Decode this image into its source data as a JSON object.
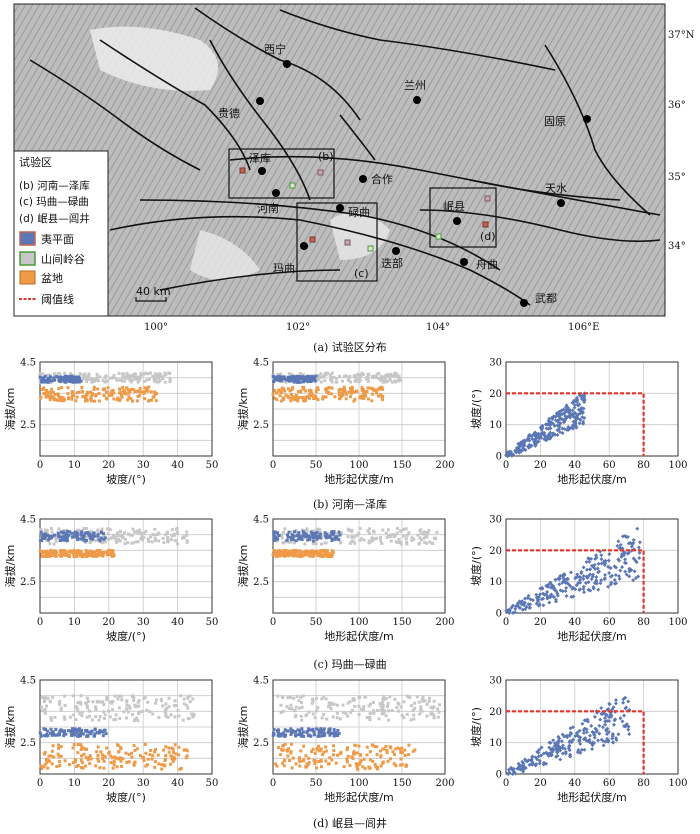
{
  "map": {
    "legend_title": "试验区",
    "legend_items": [
      "(b) 河南—泽库",
      "(c) 玛曲—碌曲",
      "(d) 岷县—闾井"
    ],
    "legend_symbols": [
      {
        "label": "夷平面",
        "color": "#5b77b5"
      },
      {
        "label": "山间岭谷",
        "color": "#c7c7c7"
      },
      {
        "label": "盆地",
        "color": "#ef9a47"
      },
      {
        "label": "阈值线",
        "color": "#e0352b"
      }
    ],
    "cities": [
      "西宁",
      "兰州",
      "贵德",
      "固原",
      "泽库",
      "合作",
      "河南",
      "碌曲",
      "岷县",
      "天水",
      "玛曲",
      "迭部",
      "舟曲",
      "武都"
    ],
    "box_labels": [
      "(b)",
      "(c)",
      "(d)"
    ],
    "lat_ticks": [
      "37°N",
      "36°",
      "35°",
      "34°"
    ],
    "lon_ticks": [
      "100°",
      "102°",
      "104°",
      "106°E"
    ],
    "scale_bar": "40 km",
    "caption": "(a) 试验区分布"
  },
  "row_captions": [
    "(b) 河南—泽库",
    "(c) 玛曲—碌曲",
    "(d) 岷县—闾井"
  ],
  "colors": {
    "planation": "#5b77b5",
    "valley": "#c7c7c7",
    "basin": "#ef9a47",
    "threshold": "#e0352b"
  },
  "chart_data": [
    {
      "id": "b1",
      "type": "scatter",
      "xlabel": "坡度/(°)",
      "ylabel": "海拔/km",
      "xlim": [
        0,
        50
      ],
      "ylim": [
        1.5,
        4.5
      ],
      "xticks": [
        "0",
        "10",
        "20",
        "30",
        "40",
        "50"
      ],
      "yticks": [
        "2.5",
        "4.5"
      ],
      "grid": true,
      "bands": [
        {
          "class": "valley",
          "x": [
            0,
            38
          ],
          "y": [
            3.85,
            4.15
          ]
        },
        {
          "class": "planation",
          "x": [
            0,
            12
          ],
          "y": [
            3.85,
            4.05
          ]
        },
        {
          "class": "basin",
          "x": [
            0,
            34
          ],
          "y": [
            3.25,
            3.7
          ]
        }
      ]
    },
    {
      "id": "b2",
      "type": "scatter",
      "xlabel": "地形起伏度/m",
      "ylabel": "海拔/km",
      "xlim": [
        0,
        200
      ],
      "ylim": [
        1.5,
        4.5
      ],
      "xticks": [
        "0",
        "50",
        "100",
        "150",
        "200"
      ],
      "yticks": [
        "2.5",
        "4.5"
      ],
      "grid": true,
      "bands": [
        {
          "class": "valley",
          "x": [
            0,
            150
          ],
          "y": [
            3.85,
            4.15
          ]
        },
        {
          "class": "planation",
          "x": [
            0,
            50
          ],
          "y": [
            3.85,
            4.05
          ]
        },
        {
          "class": "basin",
          "x": [
            0,
            130
          ],
          "y": [
            3.25,
            3.7
          ]
        }
      ]
    },
    {
      "id": "b3",
      "type": "scatter",
      "xlabel": "地形起伏度/m",
      "ylabel": "坡度/(°)",
      "xlim": [
        0,
        100
      ],
      "ylim": [
        0,
        30
      ],
      "xticks": [
        "0",
        "20",
        "40",
        "60",
        "80",
        "100"
      ],
      "yticks": [
        "0",
        "10",
        "20",
        "30"
      ],
      "grid": true,
      "threshold": {
        "x": 80,
        "y": 20
      },
      "trend": {
        "slope": 0.34,
        "xmax": 46
      }
    },
    {
      "id": "c1",
      "type": "scatter",
      "xlabel": "坡度/(°)",
      "ylabel": "海拔/km",
      "xlim": [
        0,
        50
      ],
      "ylim": [
        1.5,
        4.5
      ],
      "xticks": [
        "0",
        "10",
        "20",
        "30",
        "40",
        "50"
      ],
      "yticks": [
        "2.5",
        "4.5"
      ],
      "grid": true,
      "bands": [
        {
          "class": "valley",
          "x": [
            0,
            43
          ],
          "y": [
            3.7,
            4.2
          ]
        },
        {
          "class": "planation",
          "x": [
            0,
            19
          ],
          "y": [
            3.8,
            4.1
          ]
        },
        {
          "class": "basin",
          "x": [
            0,
            22
          ],
          "y": [
            3.3,
            3.5
          ]
        }
      ]
    },
    {
      "id": "c2",
      "type": "scatter",
      "xlabel": "地形起伏度/m",
      "ylabel": "海拔/km",
      "xlim": [
        0,
        200
      ],
      "ylim": [
        1.5,
        4.5
      ],
      "xticks": [
        "0",
        "50",
        "100",
        "150",
        "200"
      ],
      "yticks": [
        "2.5",
        "4.5"
      ],
      "grid": true,
      "bands": [
        {
          "class": "valley",
          "x": [
            0,
            192
          ],
          "y": [
            3.7,
            4.2
          ]
        },
        {
          "class": "planation",
          "x": [
            0,
            78
          ],
          "y": [
            3.8,
            4.1
          ]
        },
        {
          "class": "basin",
          "x": [
            0,
            70
          ],
          "y": [
            3.3,
            3.5
          ]
        }
      ]
    },
    {
      "id": "c3",
      "type": "scatter",
      "xlabel": "地形起伏度/m",
      "ylabel": "坡度/(°)",
      "xlim": [
        0,
        100
      ],
      "ylim": [
        0,
        30
      ],
      "xticks": [
        "0",
        "20",
        "40",
        "60",
        "80",
        "100"
      ],
      "yticks": [
        "0",
        "10",
        "20",
        "30"
      ],
      "grid": true,
      "threshold": {
        "x": 80,
        "y": 20
      },
      "trend": {
        "slope": 0.25,
        "xmax": 78
      }
    },
    {
      "id": "d1",
      "type": "scatter",
      "xlabel": "坡度/(°)",
      "ylabel": "海拔/km",
      "xlim": [
        0,
        50
      ],
      "ylim": [
        1.5,
        4.5
      ],
      "xticks": [
        "0",
        "10",
        "20",
        "30",
        "40",
        "50"
      ],
      "yticks": [
        "2.5",
        "4.5"
      ],
      "grid": true,
      "bands": [
        {
          "class": "valley",
          "x": [
            0,
            45
          ],
          "y": [
            3.2,
            4.0
          ]
        },
        {
          "class": "planation",
          "x": [
            0,
            20
          ],
          "y": [
            2.7,
            2.95
          ]
        },
        {
          "class": "basin",
          "x": [
            0,
            43
          ],
          "y": [
            1.65,
            2.45
          ]
        }
      ]
    },
    {
      "id": "d2",
      "type": "scatter",
      "xlabel": "地形起伏度/m",
      "ylabel": "海拔/km",
      "xlim": [
        0,
        200
      ],
      "ylim": [
        1.5,
        4.5
      ],
      "xticks": [
        "0",
        "50",
        "100",
        "150",
        "200"
      ],
      "yticks": [
        "2.5",
        "4.5"
      ],
      "grid": true,
      "bands": [
        {
          "class": "valley",
          "x": [
            0,
            195
          ],
          "y": [
            3.2,
            4.0
          ]
        },
        {
          "class": "planation",
          "x": [
            0,
            80
          ],
          "y": [
            2.7,
            2.95
          ]
        },
        {
          "class": "basin",
          "x": [
            0,
            165
          ],
          "y": [
            1.65,
            2.45
          ]
        }
      ]
    },
    {
      "id": "d3",
      "type": "scatter",
      "xlabel": "地形起伏度/m",
      "ylabel": "坡度/(°)",
      "xlim": [
        0,
        100
      ],
      "ylim": [
        0,
        30
      ],
      "xticks": [
        "0",
        "20",
        "40",
        "60",
        "80",
        "100"
      ],
      "yticks": [
        "0",
        "10",
        "20",
        "30"
      ],
      "grid": true,
      "threshold": {
        "x": 80,
        "y": 20
      },
      "trend": {
        "slope": 0.27,
        "xmax": 72
      }
    }
  ]
}
